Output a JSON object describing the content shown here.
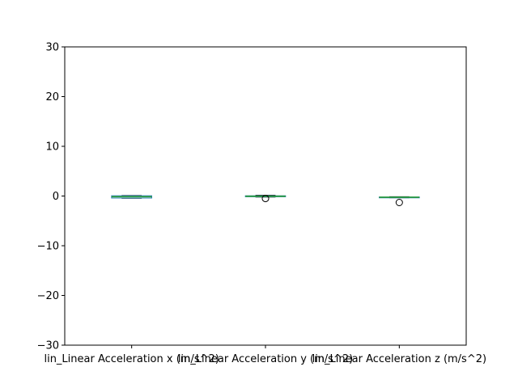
{
  "chart_data": {
    "type": "box",
    "title": "",
    "xlabel": "",
    "ylabel": "",
    "ylim": [
      -30,
      30
    ],
    "yticks": [
      -30,
      -20,
      -10,
      0,
      10,
      20,
      30
    ],
    "ytick_labels": [
      "−30",
      "−20",
      "−10",
      "0",
      "10",
      "20",
      "30"
    ],
    "categories": [
      "lin_Linear Acceleration x (m/s^2)",
      "lin_Linear Acceleration y (m/s^2)",
      "lin_Linear Acceleration z (m/s^2)"
    ],
    "boxes": [
      {
        "whisker_low": -0.45,
        "q1": -0.4,
        "median": -0.15,
        "q3": 0.05,
        "whisker_high": 0.1,
        "outliers": []
      },
      {
        "whisker_low": -0.2,
        "q1": -0.15,
        "median": -0.05,
        "q3": 0.05,
        "whisker_high": 0.15,
        "outliers": [
          -0.5
        ]
      },
      {
        "whisker_low": -0.35,
        "q1": -0.3,
        "median": -0.25,
        "q3": -0.2,
        "whisker_high": -0.15,
        "outliers": [
          -1.3
        ]
      }
    ],
    "colors": {
      "box": "#1f77b4",
      "median": "#2ca02c",
      "whisker": "#000000"
    },
    "grid": false,
    "legend": "none"
  }
}
